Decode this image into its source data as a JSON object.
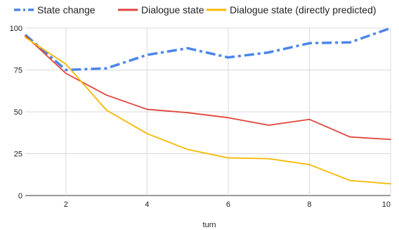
{
  "chart_data": {
    "type": "line",
    "title": "",
    "xlabel": "turn",
    "ylabel": "",
    "xlim": [
      1,
      10
    ],
    "ylim": [
      0,
      100
    ],
    "x_ticks": [
      2,
      4,
      6,
      8,
      10
    ],
    "y_ticks": [
      0,
      25,
      50,
      75,
      100
    ],
    "x_tick_labels": [
      "2",
      "4",
      "6",
      "8",
      "10"
    ],
    "y_tick_labels": [
      "0",
      "25",
      "50",
      "75",
      "100"
    ],
    "grid": true,
    "legend_position": "top",
    "x": [
      1,
      2,
      3,
      4,
      5,
      6,
      7,
      8,
      9,
      10
    ],
    "series": [
      {
        "name": "State change",
        "color": "#4a86e8",
        "style": "dash-dot",
        "values": [
          96,
          75,
          76,
          84,
          88,
          82.5,
          85.5,
          91,
          91.5,
          100
        ]
      },
      {
        "name": "Dialogue state",
        "color": "#e0463c",
        "style": "solid",
        "values": [
          95.5,
          73,
          60,
          51.5,
          49.5,
          46.5,
          42,
          45.5,
          35,
          33.5
        ]
      },
      {
        "name": "Dialogue state (directly predicted)",
        "color": "#f5b800",
        "style": "solid",
        "values": [
          94.5,
          78.5,
          51,
          37,
          27.5,
          22.5,
          22,
          18.5,
          9,
          7
        ]
      }
    ]
  }
}
